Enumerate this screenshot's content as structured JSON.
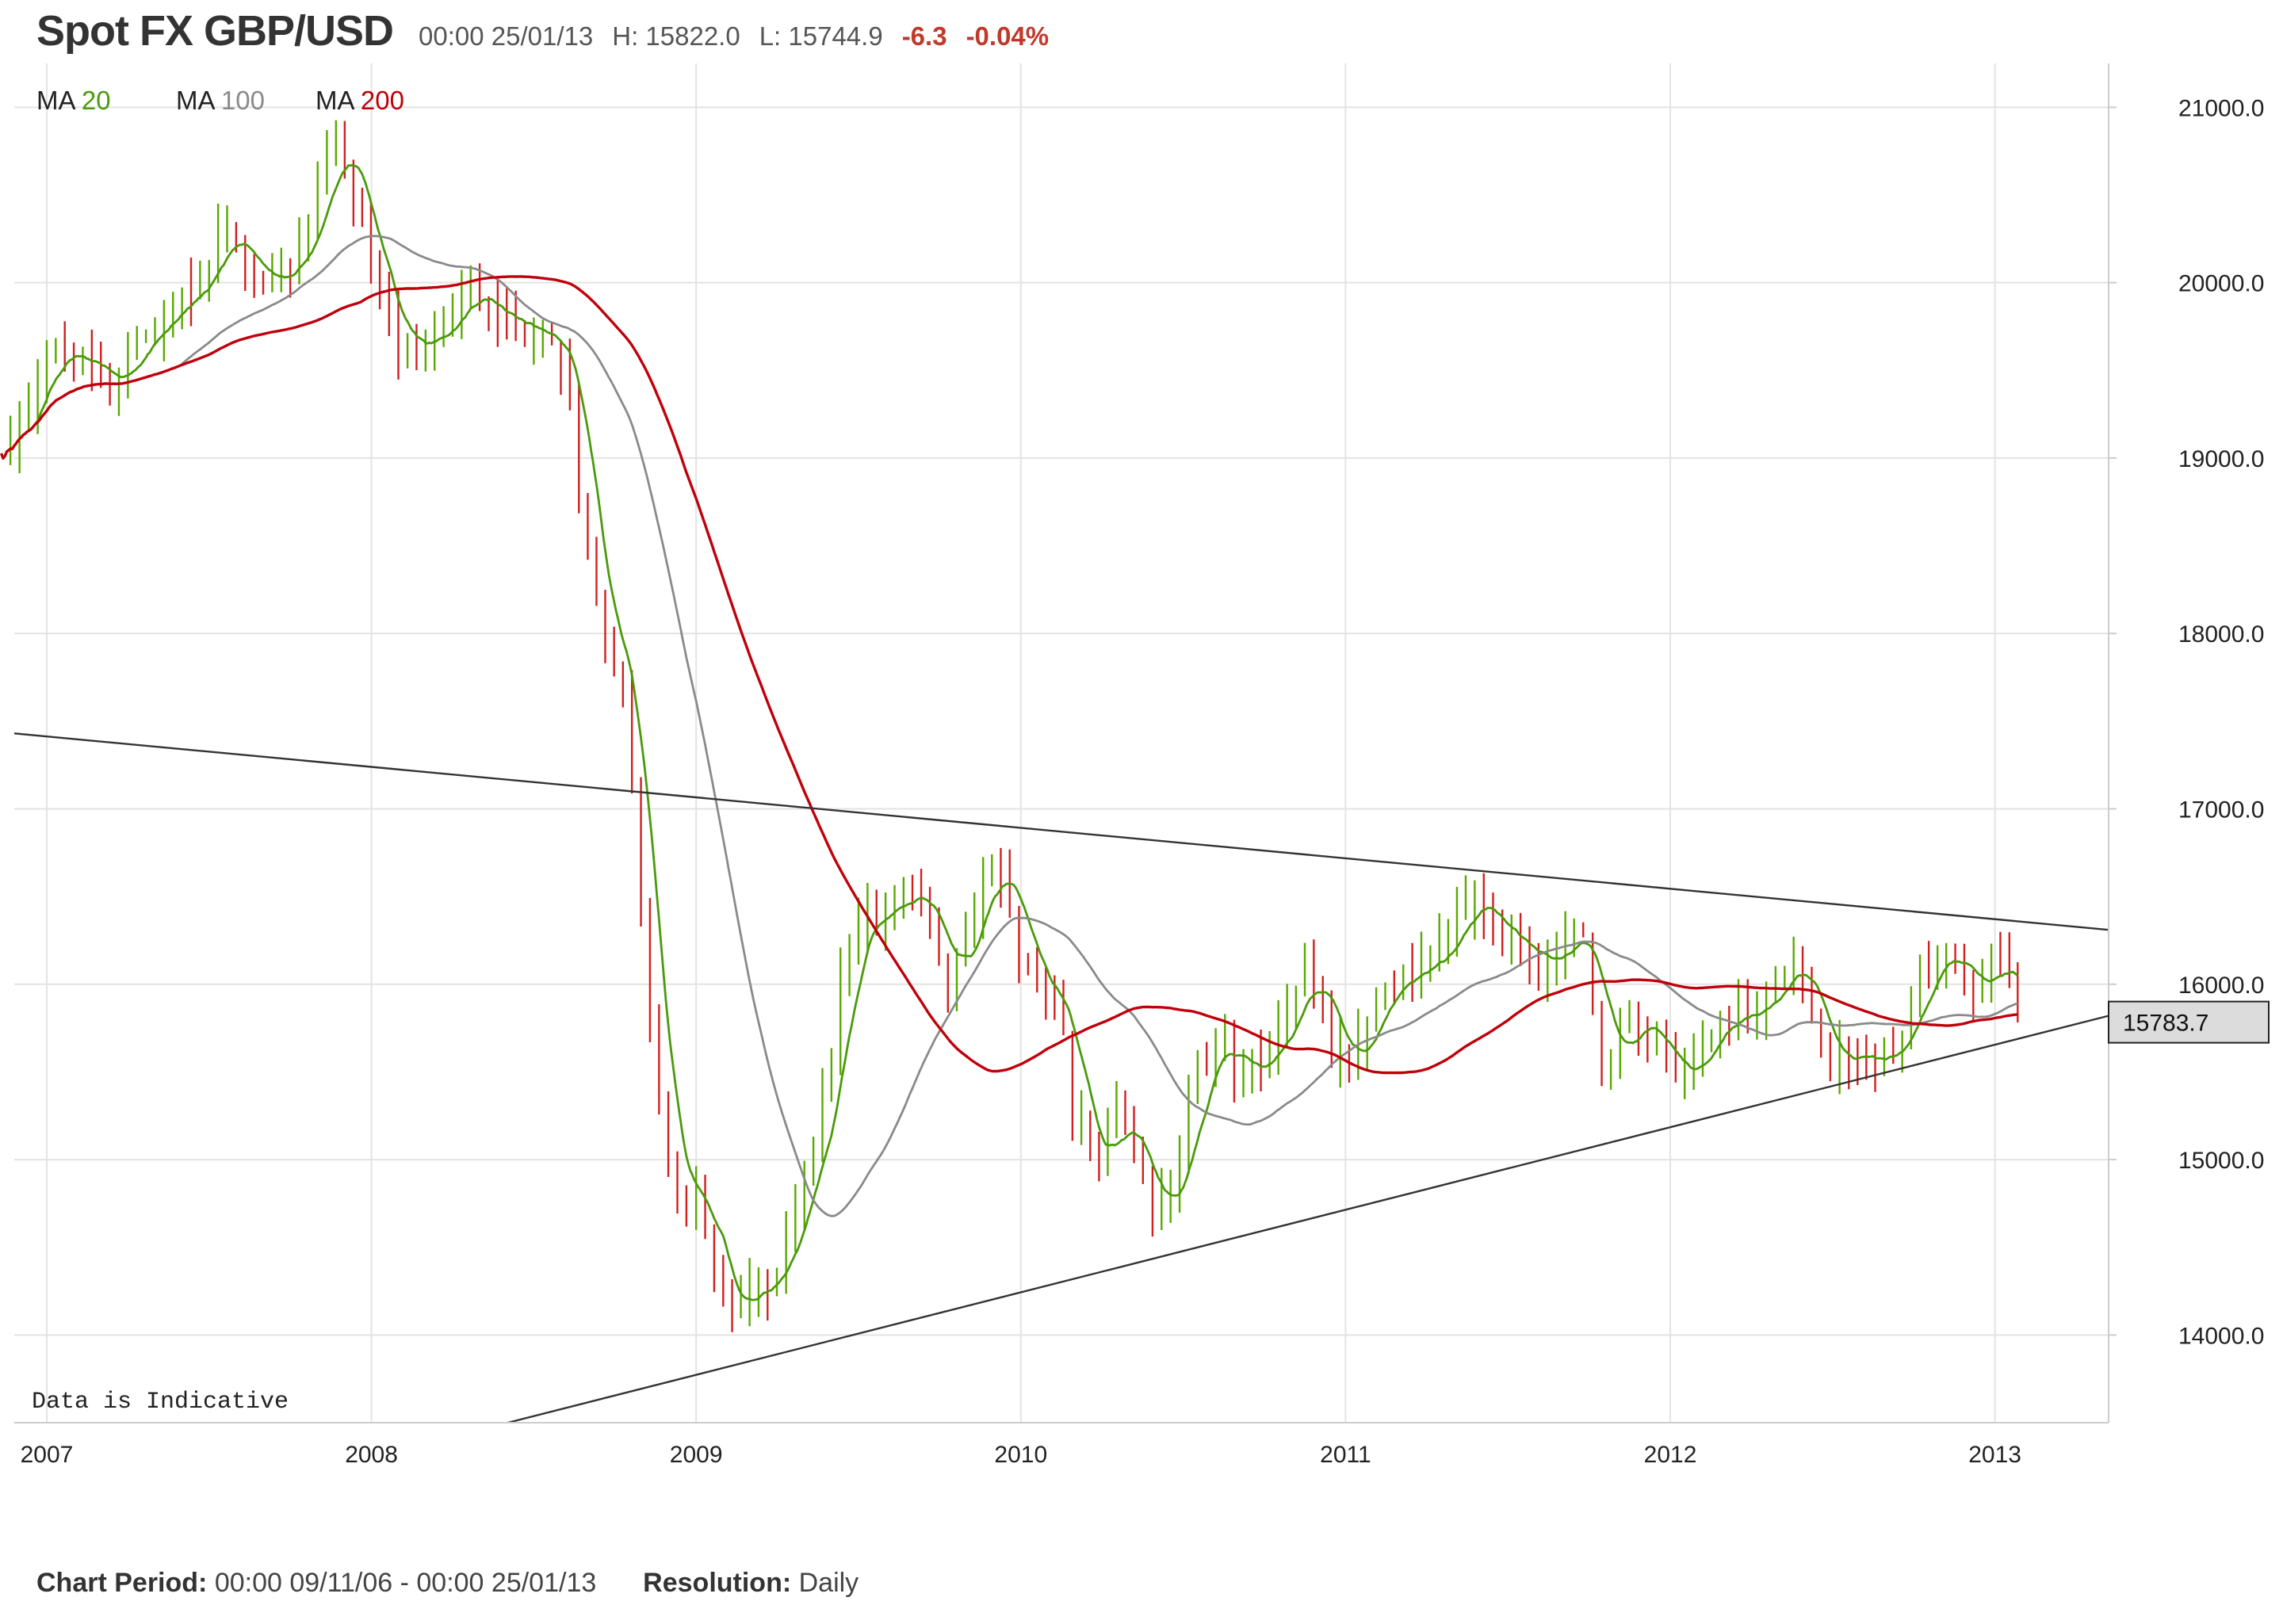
{
  "header": {
    "title": "Spot FX GBP/USD",
    "datetime": "00:00 25/01/13",
    "high": "H: 15822.0",
    "low": "L: 15744.9",
    "change": "-6.3",
    "change_pct": "-0.04%"
  },
  "legend": [
    {
      "prefix": "MA",
      "period": "20",
      "color": "#4a9a0a"
    },
    {
      "prefix": "MA",
      "period": "100",
      "color": "#8a8a8a"
    },
    {
      "prefix": "MA",
      "period": "200",
      "color": "#c0000a"
    }
  ],
  "note": "Data is Indicative",
  "price_label": "15783.7",
  "footer": {
    "period_label": "Chart Period:",
    "period_value": "00:00 09/11/06 - 00:00 25/01/13",
    "resolution_label": "Resolution:",
    "resolution_value": "Daily"
  },
  "colors": {
    "up": "#5aa800",
    "down": "#d02020",
    "grid": "#e3e3e3",
    "axis": "#cccccc",
    "trend": "#333333"
  },
  "chart_data": {
    "type": "line",
    "x_unit": "year",
    "xlim": [
      2006.9,
      2013.35
    ],
    "ylim": [
      13500,
      21250
    ],
    "x_ticks": [
      2007,
      2008,
      2009,
      2010,
      2011,
      2012,
      2013
    ],
    "x_tick_labels": [
      "2007",
      "2008",
      "2009",
      "2010",
      "2011",
      "2012",
      "2013"
    ],
    "y_ticks": [
      14000,
      15000,
      16000,
      17000,
      18000,
      19000,
      20000,
      21000
    ],
    "y_tick_labels": [
      "14000.0",
      "15000.0",
      "16000.0",
      "17000.0",
      "18000.0",
      "19000.0",
      "20000.0",
      "21000.0"
    ],
    "last_price": 15783.7,
    "price_anchors": [
      [
        2006.86,
        19000
      ],
      [
        2006.95,
        19300
      ],
      [
        2007.0,
        19600
      ],
      [
        2007.1,
        19550
      ],
      [
        2007.2,
        19450
      ],
      [
        2007.3,
        19700
      ],
      [
        2007.45,
        19950
      ],
      [
        2007.55,
        20300
      ],
      [
        2007.6,
        20100
      ],
      [
        2007.7,
        20000
      ],
      [
        2007.8,
        20300
      ],
      [
        2007.88,
        20800
      ],
      [
        2007.95,
        20500
      ],
      [
        2008.02,
        19900
      ],
      [
        2008.1,
        19600
      ],
      [
        2008.2,
        19700
      ],
      [
        2008.3,
        19950
      ],
      [
        2008.4,
        19800
      ],
      [
        2008.5,
        19700
      ],
      [
        2008.55,
        19650
      ],
      [
        2008.6,
        19500
      ],
      [
        2008.65,
        18600
      ],
      [
        2008.72,
        17900
      ],
      [
        2008.78,
        17700
      ],
      [
        2008.83,
        16300
      ],
      [
        2008.88,
        15400
      ],
      [
        2008.92,
        14900
      ],
      [
        2008.97,
        14700
      ],
      [
        2009.0,
        14900
      ],
      [
        2009.05,
        14400
      ],
      [
        2009.1,
        14100
      ],
      [
        2009.17,
        14300
      ],
      [
        2009.22,
        14250
      ],
      [
        2009.3,
        14700
      ],
      [
        2009.4,
        15400
      ],
      [
        2009.45,
        16100
      ],
      [
        2009.5,
        16350
      ],
      [
        2009.55,
        16400
      ],
      [
        2009.65,
        16550
      ],
      [
        2009.72,
        16350
      ],
      [
        2009.77,
        16000
      ],
      [
        2009.83,
        16300
      ],
      [
        2009.9,
        16650
      ],
      [
        2009.96,
        16500
      ],
      [
        2010.0,
        16150
      ],
      [
        2010.05,
        16000
      ],
      [
        2010.12,
        15800
      ],
      [
        2010.17,
        15200
      ],
      [
        2010.23,
        14950
      ],
      [
        2010.3,
        15250
      ],
      [
        2010.37,
        14900
      ],
      [
        2010.4,
        14700
      ],
      [
        2010.45,
        14800
      ],
      [
        2010.55,
        15500
      ],
      [
        2010.6,
        15700
      ],
      [
        2010.68,
        15450
      ],
      [
        2010.75,
        15600
      ],
      [
        2010.82,
        15850
      ],
      [
        2010.88,
        16100
      ],
      [
        2010.93,
        15800
      ],
      [
        2011.0,
        15550
      ],
      [
        2011.05,
        15700
      ],
      [
        2011.1,
        15950
      ],
      [
        2011.2,
        16100
      ],
      [
        2011.3,
        16200
      ],
      [
        2011.37,
        16500
      ],
      [
        2011.42,
        16400
      ],
      [
        2011.5,
        16250
      ],
      [
        2011.6,
        16100
      ],
      [
        2011.65,
        16200
      ],
      [
        2011.72,
        16350
      ],
      [
        2011.75,
        16000
      ],
      [
        2011.8,
        15500
      ],
      [
        2011.88,
        15800
      ],
      [
        2011.93,
        15700
      ],
      [
        2011.97,
        15600
      ],
      [
        2012.0,
        15500
      ],
      [
        2012.05,
        15450
      ],
      [
        2012.1,
        15700
      ],
      [
        2012.17,
        15800
      ],
      [
        2012.25,
        15850
      ],
      [
        2012.33,
        16000
      ],
      [
        2012.38,
        16150
      ],
      [
        2012.43,
        15850
      ],
      [
        2012.47,
        15550
      ],
      [
        2012.55,
        15600
      ],
      [
        2012.62,
        15550
      ],
      [
        2012.72,
        15750
      ],
      [
        2012.78,
        16100
      ],
      [
        2012.85,
        16150
      ],
      [
        2012.9,
        16050
      ],
      [
        2012.95,
        15950
      ],
      [
        2013.0,
        16150
      ],
      [
        2013.05,
        16050
      ],
      [
        2013.07,
        15783.7
      ]
    ],
    "moving_averages": [
      {
        "name": "MA 20",
        "period": 20,
        "color": "#4a9a0a"
      },
      {
        "name": "MA 100",
        "period": 100,
        "color": "#8a8a8a"
      },
      {
        "name": "MA 200",
        "period": 200,
        "color": "#c0000a"
      }
    ],
    "trendlines": [
      {
        "id": "upper",
        "from": [
          2006.9,
          17430
        ],
        "to": [
          2013.35,
          16310
        ]
      },
      {
        "id": "lower",
        "from": [
          2008.42,
          13500
        ],
        "to": [
          2013.35,
          15820
        ]
      }
    ]
  }
}
